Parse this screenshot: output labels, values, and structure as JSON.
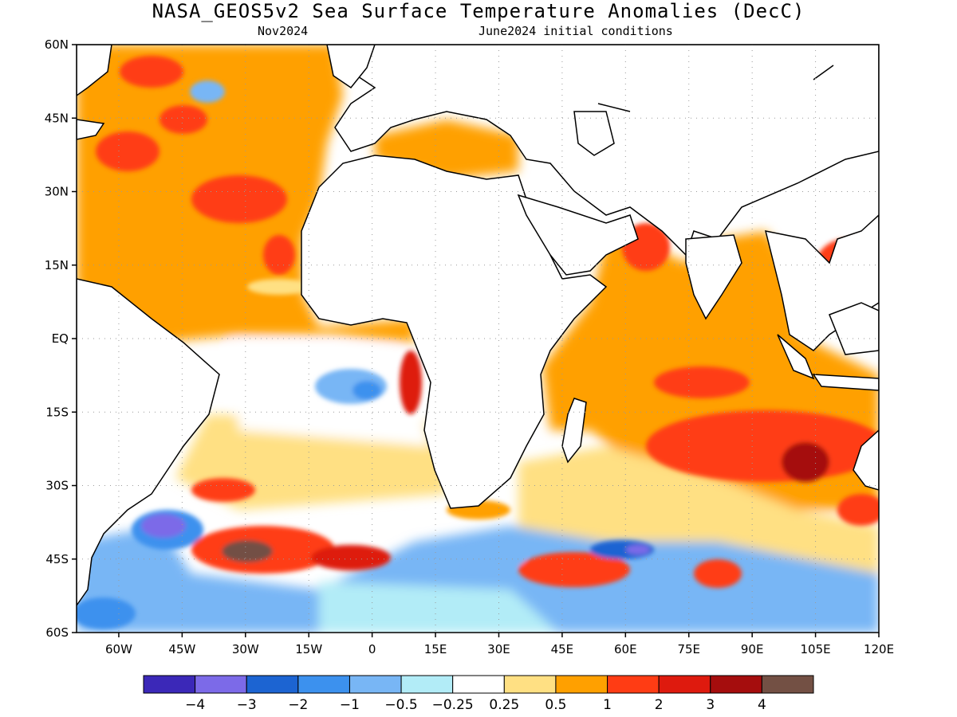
{
  "title": "NASA_GEOS5v2 Sea Surface Temperature Anomalies (DecC)",
  "valid_month": "Nov2024",
  "init_label": "June2024 initial conditions",
  "lat_labels": [
    "60N",
    "45N",
    "30N",
    "15N",
    "EQ",
    "15S",
    "30S",
    "45S",
    "60S"
  ],
  "lon_labels": [
    "60W",
    "45W",
    "30W",
    "15W",
    "0",
    "15E",
    "30E",
    "45E",
    "60E",
    "75E",
    "90E",
    "105E",
    "120E"
  ],
  "colorbar": {
    "colors": [
      "#3b28b8",
      "#7c6ae8",
      "#1c64d2",
      "#3c91ee",
      "#78b6f5",
      "#b2ecf7",
      "#ffffff",
      "#ffe083",
      "#ffa000",
      "#ff3c14",
      "#de1a0e",
      "#a50d0d",
      "#735044"
    ],
    "labels": [
      "−4",
      "−3",
      "−2",
      "−1",
      "−0.5",
      "−0.25",
      "0.25",
      "0.5",
      "1",
      "2",
      "3",
      "4"
    ]
  },
  "map_data": {
    "extent_lon": [
      -70,
      120
    ],
    "extent_lat": [
      -60,
      60
    ],
    "anomaly_patches": [
      {
        "level": "0.5–1",
        "lon": -35,
        "lat": 40
      },
      {
        "level": "0.5–1",
        "lon": -25,
        "lat": 10
      },
      {
        "level": "1–2",
        "lon": -30,
        "lat": 30
      },
      {
        "level": "1–2",
        "lon": -45,
        "lat": 45
      },
      {
        "level": "−1–−0.5",
        "lon": -35,
        "lat": 50
      },
      {
        "level": "−1–−0.5",
        "lon": 0,
        "lat": -12
      },
      {
        "level": "1–2",
        "lon": 12,
        "lat": -10
      },
      {
        "level": "0.5–1",
        "lon": 80,
        "lat": 0
      },
      {
        "level": "2–3",
        "lon": 100,
        "lat": -25
      },
      {
        "level": "−3–−2",
        "lon": -48,
        "lat": -40
      },
      {
        "level": "3–4",
        "lon": -30,
        "lat": -44
      },
      {
        "level": "−2–−1",
        "lon": 58,
        "lat": -44
      }
    ]
  }
}
